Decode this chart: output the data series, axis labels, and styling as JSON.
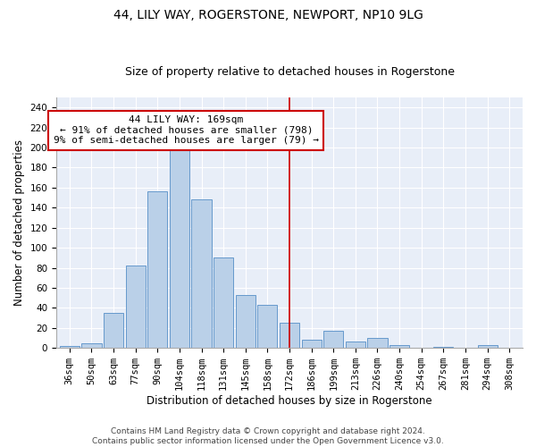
{
  "title1": "44, LILY WAY, ROGERSTONE, NEWPORT, NP10 9LG",
  "title2": "Size of property relative to detached houses in Rogerstone",
  "xlabel": "Distribution of detached houses by size in Rogerstone",
  "ylabel": "Number of detached properties",
  "categories": [
    "36sqm",
    "50sqm",
    "63sqm",
    "77sqm",
    "90sqm",
    "104sqm",
    "118sqm",
    "131sqm",
    "145sqm",
    "158sqm",
    "172sqm",
    "186sqm",
    "199sqm",
    "213sqm",
    "226sqm",
    "240sqm",
    "254sqm",
    "267sqm",
    "281sqm",
    "294sqm",
    "308sqm"
  ],
  "values": [
    2,
    5,
    35,
    82,
    156,
    201,
    148,
    90,
    53,
    43,
    25,
    8,
    17,
    6,
    10,
    3,
    0,
    1,
    0,
    3,
    0
  ],
  "bar_color": "#bad0e8",
  "bar_edge_color": "#6699cc",
  "property_label": "44 LILY WAY: 169sqm",
  "annotation_line1": "← 91% of detached houses are smaller (798)",
  "annotation_line2": "9% of semi-detached houses are larger (79) →",
  "vline_color": "#cc0000",
  "annotation_box_edge": "#cc0000",
  "footer1": "Contains HM Land Registry data © Crown copyright and database right 2024.",
  "footer2": "Contains public sector information licensed under the Open Government Licence v3.0.",
  "ylim": [
    0,
    250
  ],
  "yticks": [
    0,
    20,
    40,
    60,
    80,
    100,
    120,
    140,
    160,
    180,
    200,
    220,
    240
  ],
  "bg_color": "#e8eef8",
  "vline_x_index": 10.0,
  "title1_fontsize": 10,
  "title2_fontsize": 9,
  "xlabel_fontsize": 8.5,
  "ylabel_fontsize": 8.5,
  "tick_fontsize": 7.5,
  "footer_fontsize": 6.5,
  "annotation_fontsize": 8
}
